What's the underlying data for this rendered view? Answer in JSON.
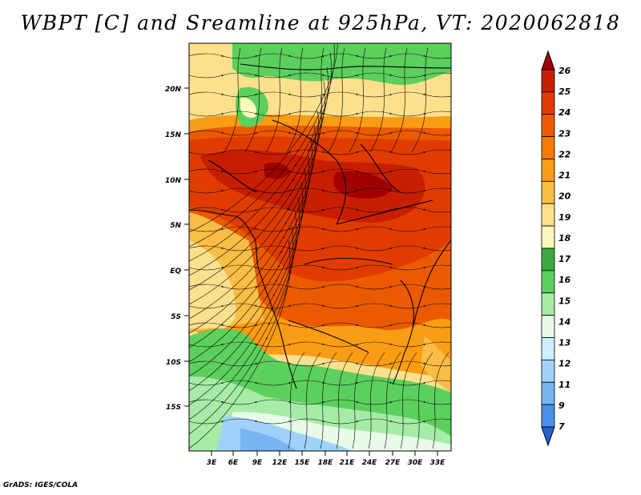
{
  "title": "WBPT [C] and Sreamline at 925hPa, VT: 2020062818",
  "footer": "GrADS: IGES/COLA",
  "map": {
    "lat_labels": [
      "20N",
      "15N",
      "10N",
      "5N",
      "EQ",
      "5S",
      "10S",
      "15S"
    ],
    "lon_labels": [
      "3E",
      "6E",
      "9E",
      "12E",
      "15E",
      "18E",
      "21E",
      "24E",
      "27E",
      "30E",
      "33E"
    ]
  },
  "colorbar": {
    "labels": [
      "26",
      "25",
      "24",
      "23",
      "22",
      "21",
      "20",
      "19",
      "18",
      "17",
      "16",
      "15",
      "14",
      "13",
      "12",
      "11",
      "9",
      "7"
    ],
    "colors": [
      "#a00000",
      "#c81e00",
      "#e03c00",
      "#eb5a00",
      "#f57a00",
      "#fa9c14",
      "#fbbd46",
      "#fde08c",
      "#fff8bc",
      "#3ca93c",
      "#5cd05c",
      "#a6eca6",
      "#e8fbe8",
      "#cfefff",
      "#a0d1f8",
      "#76b4f2",
      "#4a90e6",
      "#2462d2"
    ]
  }
}
